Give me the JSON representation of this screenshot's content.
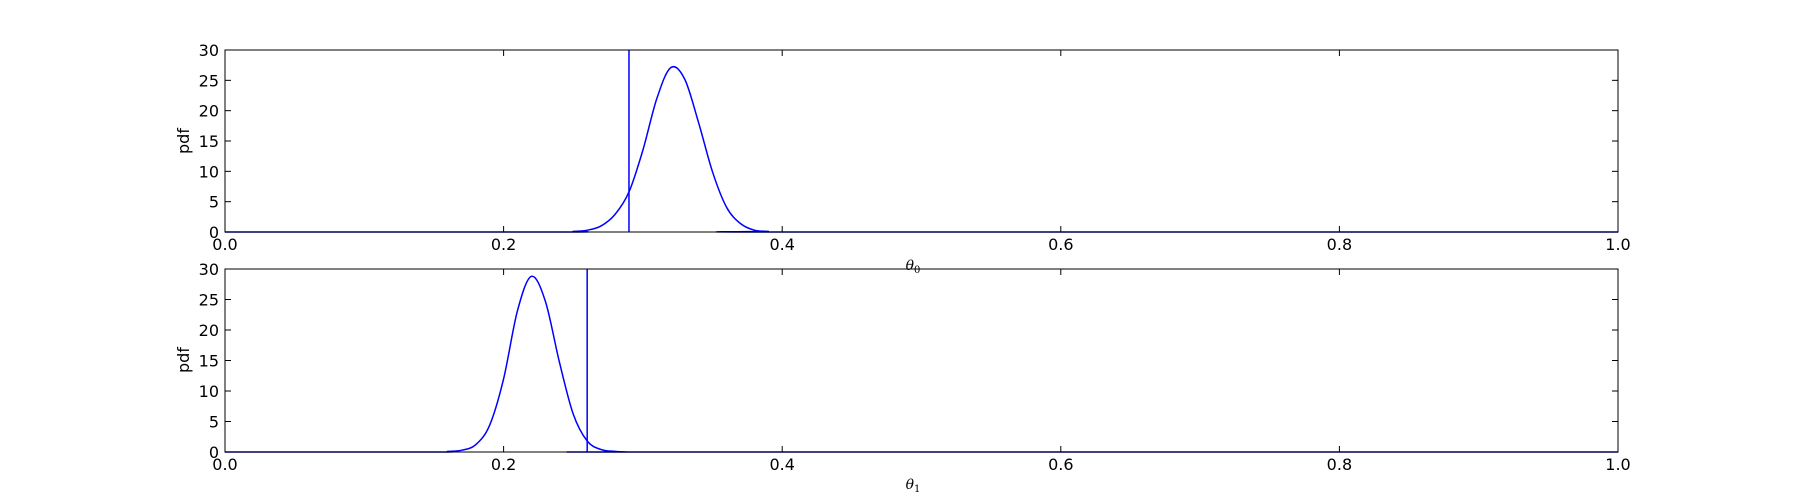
{
  "chart_data": [
    {
      "type": "line",
      "xlabel": "θ",
      "xlabel_sub": "0",
      "ylabel": "pdf",
      "xlim": [
        0.0,
        1.0
      ],
      "ylim": [
        0,
        30
      ],
      "xticks": [
        "0.0",
        "0.2",
        "0.4",
        "0.6",
        "0.8",
        "1.0"
      ],
      "yticks": [
        "0",
        "5",
        "10",
        "15",
        "20",
        "25",
        "30"
      ],
      "color": "#0000ff",
      "series": [
        {
          "x": [
            0.24,
            0.25,
            0.26,
            0.27,
            0.28,
            0.29,
            0.3,
            0.31,
            0.32,
            0.33,
            0.34,
            0.35,
            0.36,
            0.37,
            0.38,
            0.39,
            0.4
          ],
          "y": [
            0.0,
            0.1,
            0.3,
            1.0,
            2.9,
            6.6,
            13.5,
            22.0,
            27.1,
            25.2,
            18.0,
            9.9,
            4.1,
            1.4,
            0.3,
            0.1,
            0.0
          ]
        }
      ],
      "vline_x": 0.29
    },
    {
      "type": "line",
      "xlabel": "θ",
      "xlabel_sub": "1",
      "ylabel": "pdf",
      "xlim": [
        0.0,
        1.0
      ],
      "ylim": [
        0,
        30
      ],
      "xticks": [
        "0.0",
        "0.2",
        "0.4",
        "0.6",
        "0.8",
        "1.0"
      ],
      "yticks": [
        "0",
        "5",
        "10",
        "15",
        "20",
        "25",
        "30"
      ],
      "color": "#0000ff",
      "series": [
        {
          "x": [
            0.15,
            0.16,
            0.17,
            0.18,
            0.19,
            0.2,
            0.21,
            0.22,
            0.23,
            0.24,
            0.25,
            0.26,
            0.27,
            0.28,
            0.29,
            0.3
          ],
          "y": [
            0.0,
            0.1,
            0.3,
            1.2,
            4.4,
            12.0,
            23.2,
            28.8,
            24.7,
            14.8,
            6.2,
            1.8,
            0.4,
            0.1,
            0.0,
            0.0
          ]
        }
      ],
      "vline_x": 0.26
    }
  ]
}
